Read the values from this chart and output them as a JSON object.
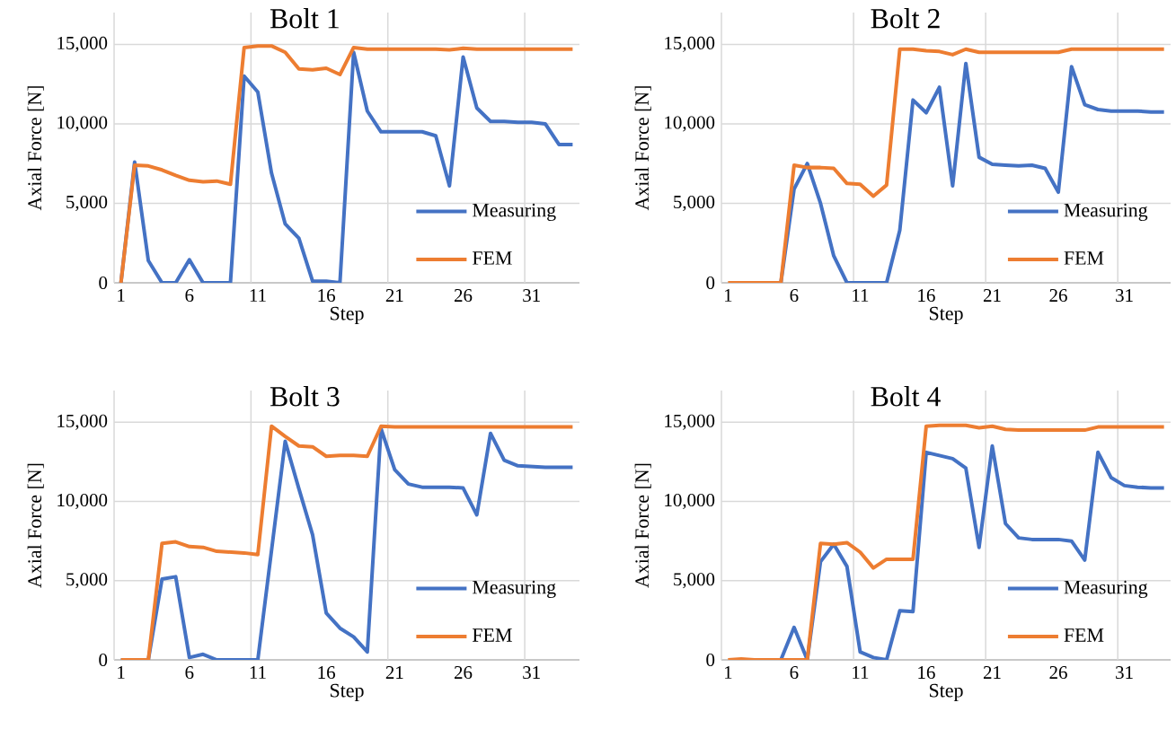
{
  "chart_data": [
    {
      "type": "line",
      "title": "Bolt 1",
      "xlabel": "Step",
      "ylabel": "Axial Force [N]",
      "categories": [
        "1",
        null,
        null,
        null,
        null,
        "6",
        null,
        null,
        null,
        null,
        "11",
        null,
        null,
        null,
        null,
        "16",
        null,
        null,
        null,
        null,
        "21",
        null,
        null,
        null,
        null,
        "26",
        null,
        null,
        null,
        null,
        "31",
        null,
        null,
        null
      ],
      "series": [
        {
          "name": "Measuring",
          "color": "#4472c4",
          "values": [
            0,
            7600,
            1400,
            0,
            0,
            1450,
            0,
            0,
            0,
            13000,
            12000,
            6900,
            3700,
            2800,
            100,
            100,
            0,
            14500,
            10800,
            9500,
            9500,
            9500,
            9500,
            9250,
            6100,
            14200,
            11000,
            10150,
            10150,
            10100,
            10100,
            10000,
            8700,
            8700
          ]
        },
        {
          "name": "FEM",
          "color": "#ed7d31",
          "values": [
            0,
            7400,
            7350,
            7100,
            6750,
            6450,
            6350,
            6400,
            6200,
            14800,
            14900,
            14900,
            14500,
            13450,
            13400,
            13500,
            13100,
            14800,
            14700,
            14700,
            14700,
            14700,
            14700,
            14700,
            14650,
            14750,
            14700,
            14700,
            14700,
            14700,
            14700,
            14700,
            14700,
            14700
          ]
        }
      ],
      "ylim": [
        0,
        17000
      ],
      "yticks": [
        0,
        {
          "value": 5000,
          "label": "5,000"
        },
        {
          "value": 10000,
          "label": "10,000"
        },
        {
          "value": 15000,
          "label": "15,000"
        }
      ],
      "grid": true,
      "legend": "bottom right"
    },
    {
      "type": "line",
      "title": "Bolt 2",
      "xlabel": "Step",
      "ylabel": "Axial Force [N]",
      "categories": [
        "1",
        null,
        null,
        null,
        null,
        "6",
        null,
        null,
        null,
        null,
        "11",
        null,
        null,
        null,
        null,
        "16",
        null,
        null,
        null,
        null,
        "21",
        null,
        null,
        null,
        null,
        "26",
        null,
        null,
        null,
        null,
        "31",
        null,
        null,
        null
      ],
      "series": [
        {
          "name": "Measuring",
          "color": "#4472c4",
          "values": [
            null,
            null,
            null,
            0,
            0,
            5900,
            7500,
            5000,
            1700,
            0,
            0,
            0,
            0,
            3300,
            11500,
            10700,
            12300,
            6100,
            13800,
            7900,
            7450,
            7400,
            7350,
            7400,
            7200,
            5700,
            13600,
            11200,
            10900,
            10800,
            10800,
            10800,
            10750,
            10750
          ]
        },
        {
          "name": "FEM",
          "color": "#ed7d31",
          "values": [
            0,
            0,
            0,
            0,
            0,
            7400,
            7250,
            7250,
            7200,
            6250,
            6200,
            5450,
            6150,
            14700,
            14700,
            14600,
            14550,
            14350,
            14700,
            14500,
            14500,
            14500,
            14500,
            14500,
            14500,
            14500,
            14700,
            14700,
            14700,
            14700,
            14700,
            14700,
            14700,
            14700
          ]
        }
      ],
      "ylim": [
        0,
        17000
      ],
      "yticks": [
        0,
        {
          "value": 5000,
          "label": "5,000"
        },
        {
          "value": 10000,
          "label": "10,000"
        },
        {
          "value": 15000,
          "label": "15,000"
        }
      ],
      "grid": true,
      "legend": "bottom right"
    },
    {
      "type": "line",
      "title": "Bolt 3",
      "xlabel": "Step",
      "ylabel": "Axial Force [N]",
      "categories": [
        "1",
        null,
        null,
        null,
        null,
        "6",
        null,
        null,
        null,
        null,
        "11",
        null,
        null,
        null,
        null,
        "16",
        null,
        null,
        null,
        null,
        "21",
        null,
        null,
        null,
        null,
        "26",
        null,
        null,
        null,
        null,
        "31",
        null,
        null,
        null
      ],
      "series": [
        {
          "name": "Measuring",
          "color": "#4472c4",
          "values": [
            0,
            0,
            0,
            5100,
            5250,
            150,
            350,
            0,
            0,
            0,
            0,
            6900,
            13800,
            10800,
            7900,
            2950,
            2000,
            1450,
            500,
            14600,
            12000,
            11100,
            10900,
            10900,
            10900,
            10850,
            9150,
            14300,
            12600,
            12250,
            12200,
            12150,
            12150,
            12150
          ]
        },
        {
          "name": "FEM",
          "color": "#ed7d31",
          "values": [
            0,
            0,
            0,
            7350,
            7450,
            7150,
            7100,
            6850,
            6800,
            6750,
            6650,
            14750,
            14100,
            13500,
            13450,
            12850,
            12900,
            12900,
            12850,
            14750,
            14700,
            14700,
            14700,
            14700,
            14700,
            14700,
            14700,
            14700,
            14700,
            14700,
            14700,
            14700,
            14700,
            14700
          ]
        }
      ],
      "ylim": [
        0,
        17000
      ],
      "yticks": [
        0,
        {
          "value": 5000,
          "label": "5,000"
        },
        {
          "value": 10000,
          "label": "10,000"
        },
        {
          "value": 15000,
          "label": "15,000"
        }
      ],
      "grid": true,
      "legend": "bottom right"
    },
    {
      "type": "line",
      "title": "Bolt 4",
      "xlabel": "Step",
      "ylabel": "Axial Force [N]",
      "categories": [
        "1",
        null,
        null,
        null,
        null,
        "6",
        null,
        null,
        null,
        null,
        "11",
        null,
        null,
        null,
        null,
        "16",
        null,
        null,
        null,
        null,
        "21",
        null,
        null,
        null,
        null,
        "26",
        null,
        null,
        null,
        null,
        "31",
        null,
        null,
        null
      ],
      "series": [
        {
          "name": "Measuring",
          "color": "#4472c4",
          "values": [
            null,
            null,
            null,
            0,
            0,
            2050,
            0,
            6200,
            7300,
            5900,
            500,
            150,
            0,
            3100,
            3050,
            13100,
            12900,
            12700,
            12100,
            7100,
            13500,
            8600,
            7700,
            7600,
            7600,
            7600,
            7500,
            6300,
            13100,
            11500,
            11000,
            10900,
            10850,
            10850
          ]
        },
        {
          "name": "FEM",
          "color": "#ed7d31",
          "values": [
            0,
            50,
            0,
            0,
            0,
            0,
            0,
            7350,
            7300,
            7400,
            6800,
            5800,
            6350,
            6350,
            6350,
            14750,
            14800,
            14800,
            14800,
            14650,
            14750,
            14550,
            14500,
            14500,
            14500,
            14500,
            14500,
            14500,
            14700,
            14700,
            14700,
            14700,
            14700,
            14700
          ]
        }
      ],
      "ylim": [
        0,
        17000
      ],
      "yticks": [
        0,
        {
          "value": 5000,
          "label": "5,000"
        },
        {
          "value": 10000,
          "label": "10,000"
        },
        {
          "value": 15000,
          "label": "15,000"
        }
      ],
      "grid": true,
      "legend": "bottom right"
    }
  ]
}
